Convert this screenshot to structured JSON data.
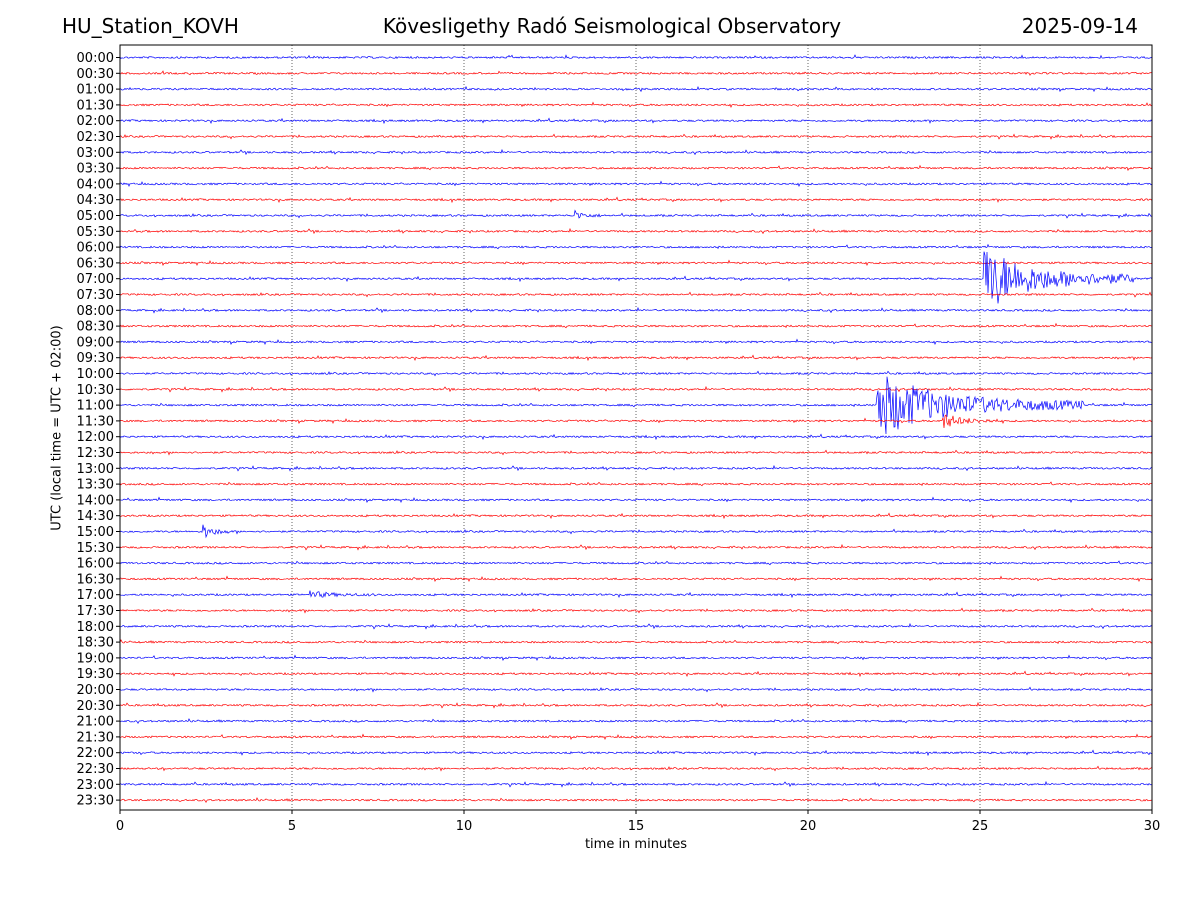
{
  "header": {
    "station": "HU_Station_KOVH",
    "title": "Kövesligethy Radó Seismological Observatory",
    "date": "2025-09-14"
  },
  "chart_data": {
    "type": "line",
    "title": "Kövesligethy Radó Seismological Observatory",
    "xlabel": "time in minutes",
    "ylabel": "UTC (local time = UTC + 02:00)",
    "xlim": [
      0,
      30
    ],
    "x_ticks": [
      0,
      5,
      10,
      15,
      20,
      25,
      30
    ],
    "grid": "vertical dotted at x ticks",
    "trace_colors": [
      "#0000ff",
      "#ff0000"
    ],
    "rows": [
      "00:00",
      "00:30",
      "01:00",
      "01:30",
      "02:00",
      "02:30",
      "03:00",
      "03:30",
      "04:00",
      "04:30",
      "05:00",
      "05:30",
      "06:00",
      "06:30",
      "07:00",
      "07:30",
      "08:00",
      "08:30",
      "09:00",
      "09:30",
      "10:00",
      "10:30",
      "11:00",
      "11:30",
      "12:00",
      "12:30",
      "13:00",
      "13:30",
      "14:00",
      "14:30",
      "15:00",
      "15:30",
      "16:00",
      "16:30",
      "17:00",
      "17:30",
      "18:00",
      "18:30",
      "19:00",
      "19:30",
      "20:00",
      "20:30",
      "21:00",
      "21:30",
      "22:00",
      "22:30",
      "23:00",
      "23:30"
    ],
    "events": [
      {
        "row": "07:00",
        "start_min": 25.1,
        "end_min": 29.5,
        "peak_amplitude": 1.0
      },
      {
        "row": "11:00",
        "start_min": 22.0,
        "end_min": 28.0,
        "peak_amplitude": 1.0
      },
      {
        "row": "11:30",
        "start_min": 23.9,
        "end_min": 25.5,
        "peak_amplitude": 0.25
      },
      {
        "row": "15:00",
        "start_min": 2.4,
        "end_min": 3.2,
        "peak_amplitude": 0.25
      },
      {
        "row": "05:00",
        "start_min": 13.2,
        "end_min": 14.0,
        "peak_amplitude": 0.15
      },
      {
        "row": "17:00",
        "start_min": 5.5,
        "end_min": 7.5,
        "peak_amplitude": 0.1
      }
    ]
  }
}
